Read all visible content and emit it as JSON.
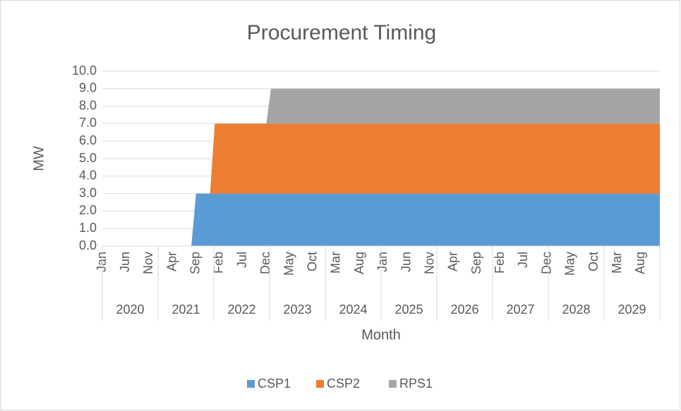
{
  "chart_data": {
    "type": "area",
    "stacked": true,
    "title": "Procurement Timing",
    "x_label": "Month",
    "y_label": "MW",
    "categories": [
      "Jan",
      null,
      null,
      null,
      null,
      "Jun",
      null,
      null,
      null,
      null,
      "Nov",
      null,
      null,
      null,
      null,
      "Apr",
      null,
      null,
      null,
      null,
      "Sep",
      null,
      null,
      null,
      null,
      "Feb",
      null,
      null,
      null,
      null,
      "Jul",
      null,
      null,
      null,
      null,
      "Dec",
      null,
      null,
      null,
      null,
      "May",
      null,
      null,
      null,
      null,
      "Oct",
      null,
      null,
      null,
      null,
      "Mar",
      null,
      null,
      null,
      null,
      "Aug",
      null,
      null,
      null,
      null,
      "Jan",
      null,
      null,
      null,
      null,
      "Jun",
      null,
      null,
      null,
      null,
      "Nov",
      null,
      null,
      null,
      null,
      "Apr",
      null,
      null,
      null,
      null,
      "Sep",
      null,
      null,
      null,
      null,
      "Feb",
      null,
      null,
      null,
      null,
      "Jul",
      null,
      null,
      null,
      null,
      "Dec",
      null,
      null,
      null,
      null,
      "May",
      null,
      null,
      null,
      null,
      "Oct",
      null,
      null,
      null,
      null,
      "Mar",
      null,
      null,
      null,
      null,
      "Aug",
      null,
      null,
      null,
      null
    ],
    "years": [
      "2020",
      "2021",
      "2022",
      "2023",
      "2024",
      "2025",
      "2026",
      "2027",
      "2028",
      "2029"
    ],
    "series": [
      {
        "name": "CSP1",
        "color": "#5b9bd5",
        "values": [
          0,
          0,
          0,
          0,
          0,
          0,
          0,
          0,
          0,
          0,
          0,
          0,
          0,
          0,
          0,
          0,
          0,
          0,
          0,
          0,
          3,
          3,
          3,
          3,
          3,
          3,
          3,
          3,
          3,
          3,
          3,
          3,
          3,
          3,
          3,
          3,
          3,
          3,
          3,
          3,
          3,
          3,
          3,
          3,
          3,
          3,
          3,
          3,
          3,
          3,
          3,
          3,
          3,
          3,
          3,
          3,
          3,
          3,
          3,
          3,
          3,
          3,
          3,
          3,
          3,
          3,
          3,
          3,
          3,
          3,
          3,
          3,
          3,
          3,
          3,
          3,
          3,
          3,
          3,
          3,
          3,
          3,
          3,
          3,
          3,
          3,
          3,
          3,
          3,
          3,
          3,
          3,
          3,
          3,
          3,
          3,
          3,
          3,
          3,
          3,
          3,
          3,
          3,
          3,
          3,
          3,
          3,
          3,
          3,
          3,
          3,
          3,
          3,
          3,
          3,
          3,
          3,
          3,
          3,
          3
        ]
      },
      {
        "name": "CSP2",
        "color": "#ed7d31",
        "values": [
          0,
          0,
          0,
          0,
          0,
          0,
          0,
          0,
          0,
          0,
          0,
          0,
          0,
          0,
          0,
          0,
          0,
          0,
          0,
          0,
          0,
          0,
          0,
          0,
          4,
          4,
          4,
          4,
          4,
          4,
          4,
          4,
          4,
          4,
          4,
          4,
          4,
          4,
          4,
          4,
          4,
          4,
          4,
          4,
          4,
          4,
          4,
          4,
          4,
          4,
          4,
          4,
          4,
          4,
          4,
          4,
          4,
          4,
          4,
          4,
          4,
          4,
          4,
          4,
          4,
          4,
          4,
          4,
          4,
          4,
          4,
          4,
          4,
          4,
          4,
          4,
          4,
          4,
          4,
          4,
          4,
          4,
          4,
          4,
          4,
          4,
          4,
          4,
          4,
          4,
          4,
          4,
          4,
          4,
          4,
          4,
          4,
          4,
          4,
          4,
          4,
          4,
          4,
          4,
          4,
          4,
          4,
          4,
          4,
          4,
          4,
          4,
          4,
          4,
          4,
          4,
          4,
          4,
          4,
          4
        ]
      },
      {
        "name": "RPS1",
        "color": "#a5a5a5",
        "values": [
          0,
          0,
          0,
          0,
          0,
          0,
          0,
          0,
          0,
          0,
          0,
          0,
          0,
          0,
          0,
          0,
          0,
          0,
          0,
          0,
          0,
          0,
          0,
          0,
          0,
          0,
          0,
          0,
          0,
          0,
          0,
          0,
          0,
          0,
          0,
          0,
          2,
          2,
          2,
          2,
          2,
          2,
          2,
          2,
          2,
          2,
          2,
          2,
          2,
          2,
          2,
          2,
          2,
          2,
          2,
          2,
          2,
          2,
          2,
          2,
          2,
          2,
          2,
          2,
          2,
          2,
          2,
          2,
          2,
          2,
          2,
          2,
          2,
          2,
          2,
          2,
          2,
          2,
          2,
          2,
          2,
          2,
          2,
          2,
          2,
          2,
          2,
          2,
          2,
          2,
          2,
          2,
          2,
          2,
          2,
          2,
          2,
          2,
          2,
          2,
          2,
          2,
          2,
          2,
          2,
          2,
          2,
          2,
          2,
          2,
          2,
          2,
          2,
          2,
          2,
          2,
          2,
          2,
          2,
          2
        ]
      }
    ],
    "ylim": [
      0,
      10
    ],
    "yticks": [
      {
        "value": 0,
        "label": "0.0"
      },
      {
        "value": 1,
        "label": "1.0"
      },
      {
        "value": 2,
        "label": "2.0"
      },
      {
        "value": 3,
        "label": "3.0"
      },
      {
        "value": 4,
        "label": "4.0"
      },
      {
        "value": 5,
        "label": "5.0"
      },
      {
        "value": 6,
        "label": "6.0"
      },
      {
        "value": 7,
        "label": "7.0"
      },
      {
        "value": 8,
        "label": "8.0"
      },
      {
        "value": 9,
        "label": "9.0"
      },
      {
        "value": 10,
        "label": "10.0"
      }
    ],
    "grid": true,
    "legend": "bottom"
  }
}
